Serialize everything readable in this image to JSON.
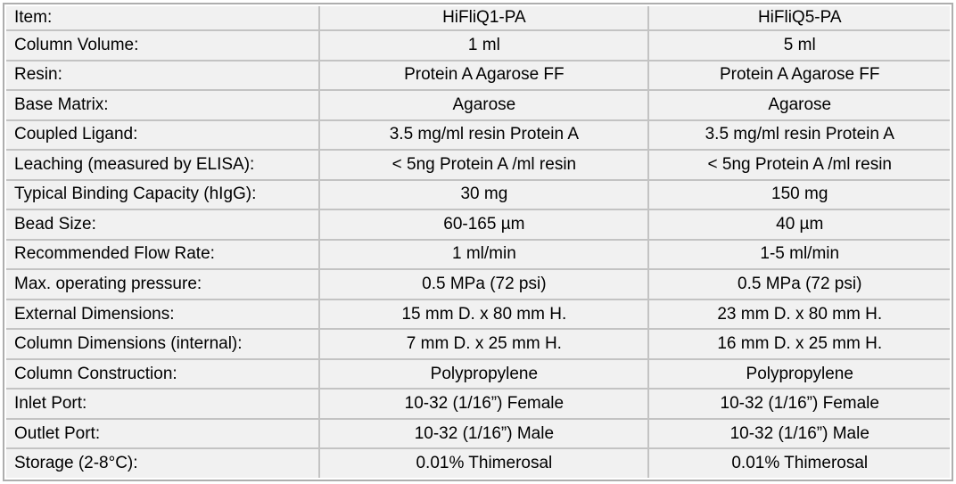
{
  "table": {
    "header": [
      "Item:",
      "HiFliQ1-PA",
      "HiFliQ5-PA"
    ],
    "rows": [
      [
        "Column Volume:",
        "1 ml",
        "5 ml"
      ],
      [
        "Resin:",
        "Protein A Agarose FF",
        "Protein A Agarose FF"
      ],
      [
        "Base Matrix:",
        "Agarose",
        "Agarose"
      ],
      [
        "Coupled Ligand:",
        "3.5 mg/ml resin Protein A",
        "3.5 mg/ml resin Protein A"
      ],
      [
        "Leaching (measured by ELISA):",
        "< 5ng Protein A /ml resin",
        "< 5ng Protein A /ml resin"
      ],
      [
        "Typical Binding Capacity (hIgG):",
        "30 mg",
        "150 mg"
      ],
      [
        "Bead Size:",
        "60-165 µm",
        "40 µm"
      ],
      [
        "Recommended Flow Rate:",
        "1 ml/min",
        "1-5 ml/min"
      ],
      [
        "Max. operating pressure:",
        "0.5 MPa (72 psi)",
        "0.5 MPa (72 psi)"
      ],
      [
        "External Dimensions:",
        "15 mm D. x 80 mm H.",
        "23 mm D. x 80 mm H."
      ],
      [
        "Column Dimensions (internal):",
        "7 mm D. x 25 mm H.",
        "16 mm D. x 25 mm H."
      ],
      [
        "Column Construction:",
        "Polypropylene",
        "Polypropylene"
      ],
      [
        "Inlet Port:",
        "10-32 (1/16”) Female",
        "10-32 (1/16”) Female"
      ],
      [
        "Outlet Port:",
        "10-32 (1/16”) Male",
        "10-32 (1/16”) Male"
      ],
      [
        "Storage (2-8°C):",
        "0.01% Thimerosal",
        "0.01% Thimerosal"
      ]
    ]
  },
  "colors": {
    "cell_bg": "#f1f1f1",
    "inner_border": "#c3c3c3",
    "outer_border": "#aeaeae",
    "text": "#000000"
  }
}
